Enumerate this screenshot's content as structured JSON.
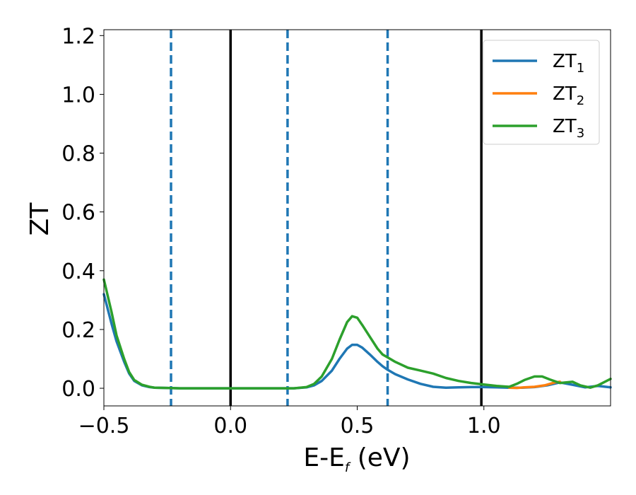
{
  "chart_data": {
    "type": "line",
    "xlabel_main": "E-E",
    "xlabel_sub": "f",
    "xlabel_unit": " (eV)",
    "ylabel": "ZT",
    "xlim": [
      -0.5,
      1.5
    ],
    "ylim": [
      -0.06,
      1.22
    ],
    "xticks": [
      -0.5,
      0.0,
      0.5,
      1.0
    ],
    "xtick_labels": [
      "−0.5",
      "0.0",
      "0.5",
      "1.0"
    ],
    "yticks": [
      0.0,
      0.2,
      0.4,
      0.6,
      0.8,
      1.0,
      1.2
    ],
    "ytick_labels": [
      "0.0",
      "0.2",
      "0.4",
      "0.6",
      "0.8",
      "1.0",
      "1.2"
    ],
    "legend_position": "top-right",
    "vlines_solid": [
      0.0,
      0.99
    ],
    "vlines_dashed": [
      -0.235,
      0.225,
      0.62
    ],
    "series": [
      {
        "name": "ZT",
        "sub": "1",
        "color": "#1f77b4",
        "x": [
          -0.5,
          -0.47,
          -0.45,
          -0.42,
          -0.4,
          -0.38,
          -0.35,
          -0.32,
          -0.3,
          -0.25,
          -0.2,
          0.0,
          0.25,
          0.3,
          0.33,
          0.36,
          0.4,
          0.43,
          0.46,
          0.48,
          0.5,
          0.52,
          0.55,
          0.58,
          0.6,
          0.62,
          0.65,
          0.7,
          0.75,
          0.8,
          0.85,
          0.9,
          0.95,
          1.0,
          1.05,
          1.1,
          1.15,
          1.2,
          1.25,
          1.3,
          1.35,
          1.4,
          1.45,
          1.5
        ],
        "y": [
          0.32,
          0.22,
          0.16,
          0.09,
          0.05,
          0.025,
          0.01,
          0.004,
          0.002,
          0.001,
          0.0,
          0.0,
          0.0,
          0.003,
          0.01,
          0.025,
          0.06,
          0.1,
          0.135,
          0.148,
          0.148,
          0.138,
          0.115,
          0.09,
          0.075,
          0.063,
          0.048,
          0.03,
          0.015,
          0.005,
          0.002,
          0.003,
          0.004,
          0.004,
          0.003,
          0.002,
          0.002,
          0.004,
          0.01,
          0.02,
          0.012,
          0.003,
          0.008,
          0.003
        ]
      },
      {
        "name": "ZT",
        "sub": "2",
        "color": "#ff7f0e",
        "x": [
          1.1,
          1.13,
          1.16,
          1.2,
          1.24,
          1.28,
          1.3
        ],
        "y": [
          0.002,
          0.001,
          0.003,
          0.005,
          0.01,
          0.02,
          0.022
        ]
      },
      {
        "name": "ZT",
        "sub": "3",
        "color": "#2ca02c",
        "x": [
          -0.5,
          -0.47,
          -0.45,
          -0.42,
          -0.4,
          -0.38,
          -0.35,
          -0.32,
          -0.3,
          -0.25,
          -0.2,
          0.0,
          0.25,
          0.3,
          0.33,
          0.36,
          0.4,
          0.43,
          0.46,
          0.48,
          0.5,
          0.52,
          0.55,
          0.58,
          0.6,
          0.62,
          0.65,
          0.7,
          0.75,
          0.8,
          0.85,
          0.9,
          0.95,
          1.0,
          1.05,
          1.1,
          1.13,
          1.16,
          1.2,
          1.23,
          1.26,
          1.3,
          1.35,
          1.38,
          1.42,
          1.45,
          1.5
        ],
        "y": [
          0.37,
          0.26,
          0.18,
          0.1,
          0.055,
          0.028,
          0.012,
          0.005,
          0.002,
          0.001,
          0.0,
          0.0,
          0.0,
          0.004,
          0.015,
          0.04,
          0.1,
          0.165,
          0.225,
          0.245,
          0.24,
          0.215,
          0.175,
          0.135,
          0.115,
          0.105,
          0.09,
          0.07,
          0.06,
          0.05,
          0.035,
          0.025,
          0.018,
          0.013,
          0.008,
          0.005,
          0.015,
          0.028,
          0.04,
          0.04,
          0.03,
          0.018,
          0.022,
          0.01,
          0.002,
          0.01,
          0.032
        ]
      }
    ]
  }
}
